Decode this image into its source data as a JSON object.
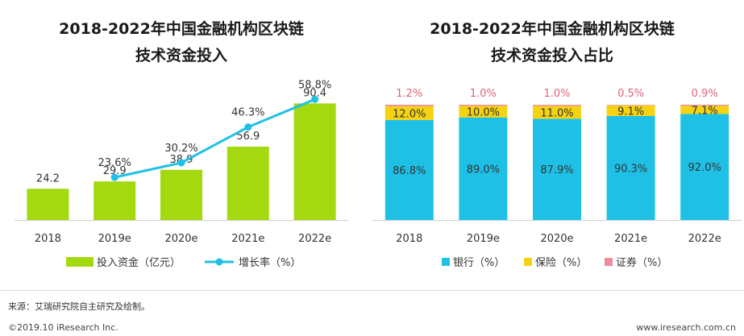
{
  "chart_data": [
    {
      "type": "bar",
      "title_lines": [
        "2018-2022年中国金融机构区块链",
        "技术资金投入"
      ],
      "categories": [
        "2018",
        "2019e",
        "2020e",
        "2021e",
        "2022e"
      ],
      "series": [
        {
          "name": "投入资金（亿元）",
          "kind": "bar",
          "color": "#a4d80f",
          "values": [
            24.2,
            29.9,
            38.9,
            56.9,
            90.4
          ],
          "labels": [
            "24.2",
            "29.9",
            "38.9",
            "56.9",
            "90.4"
          ]
        },
        {
          "name": "增长率（%）",
          "kind": "line",
          "color": "#1fc0e6",
          "values": [
            null,
            23.6,
            30.2,
            46.3,
            58.8
          ],
          "labels": [
            "",
            "23.6%",
            "30.2%",
            "46.3%",
            "58.8%"
          ]
        }
      ],
      "ylim": [
        0,
        100
      ],
      "y2lim": [
        0,
        150
      ],
      "legend": "bottom"
    },
    {
      "type": "stacked_bar",
      "title_lines": [
        "2018-2022年中国金融机构区块链",
        "技术资金投入占比"
      ],
      "categories": [
        "2018",
        "2019e",
        "2020e",
        "2021e",
        "2022e"
      ],
      "series": [
        {
          "name": "银行（%）",
          "color": "#1fc0e6",
          "values": [
            86.8,
            89.0,
            87.9,
            90.3,
            92.0
          ],
          "labels": [
            "86.8%",
            "89.0%",
            "87.9%",
            "90.3%",
            "92.0%"
          ]
        },
        {
          "name": "保险（%）",
          "color": "#f5d312",
          "values": [
            12.0,
            10.0,
            11.0,
            9.1,
            7.1
          ],
          "labels": [
            "12.0%",
            "10.0%",
            "11.0%",
            "9.1%",
            "7.1%"
          ]
        },
        {
          "name": "证券（%）",
          "color": "#f08b9a",
          "values": [
            1.2,
            1.0,
            1.0,
            0.5,
            0.9
          ],
          "labels": [
            "1.2%",
            "1.0%",
            "1.0%",
            "0.5%",
            "0.9%"
          ]
        }
      ],
      "ylim": [
        0,
        100
      ],
      "legend": "bottom"
    }
  ],
  "footer": {
    "source": "来源：艾瑞研究院自主研究及绘制。",
    "copyright": "©2019.10 iResearch Inc.",
    "website": "www.iresearch.com.cn"
  }
}
